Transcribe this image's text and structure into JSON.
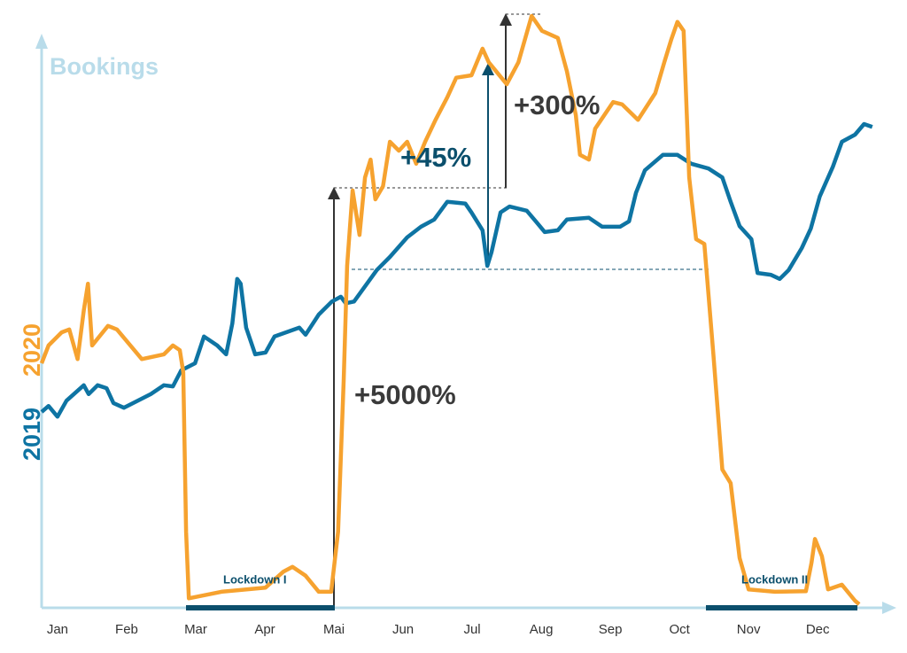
{
  "chart_data": {
    "type": "line",
    "ylabel": "Bookings",
    "categories": [
      "Jan",
      "Feb",
      "Mar",
      "Apr",
      "Mai",
      "Jun",
      "Jul",
      "Aug",
      "Sep",
      "Oct",
      "Nov",
      "Dec"
    ],
    "xlim": [
      -0.23,
      12.1
    ],
    "ylim": [
      0,
      100
    ],
    "series": [
      {
        "name": "2020",
        "color": "#f6a22f",
        "x": [
          -0.23,
          -0.13,
          0.06,
          0.17,
          0.29,
          0.38,
          0.44,
          0.5,
          0.73,
          0.86,
          1.22,
          1.54,
          1.67,
          1.77,
          1.82,
          1.86,
          1.9,
          2.37,
          3.01,
          3.27,
          3.4,
          3.59,
          3.78,
          3.96,
          4.06,
          4.14,
          4.19,
          4.27,
          4.37,
          4.45,
          4.53,
          4.6,
          4.71,
          4.81,
          4.94,
          5.06,
          5.19,
          5.32,
          5.47,
          5.64,
          5.77,
          5.99,
          6.15,
          6.24,
          6.5,
          6.67,
          6.86,
          7.01,
          7.24,
          7.37,
          7.5,
          7.56,
          7.69,
          7.78,
          8.04,
          8.17,
          8.4,
          8.65,
          8.78,
          8.88,
          8.97,
          9.06,
          9.14,
          9.24,
          9.36,
          9.49,
          9.62,
          9.74,
          9.87,
          10.0,
          10.38,
          10.83,
          10.91,
          10.96,
          11.06,
          11.15,
          11.35,
          11.54,
          11.6
        ],
        "values": [
          41.2,
          44.2,
          46.4,
          46.9,
          41.9,
          50.1,
          54.6,
          44.2,
          47.5,
          46.9,
          41.9,
          42.7,
          44.2,
          43.4,
          39.7,
          12.8,
          1.6,
          2.7,
          3.4,
          6.1,
          6.9,
          5.4,
          2.7,
          2.7,
          12.8,
          38.2,
          57.6,
          70.3,
          62.8,
          72.5,
          75.5,
          68.8,
          71.0,
          78.5,
          77.0,
          78.5,
          74.8,
          78.5,
          82.2,
          86.0,
          89.3,
          89.7,
          94.2,
          91.9,
          88.2,
          91.9,
          99.7,
          97.2,
          96.0,
          90.4,
          83.0,
          76.3,
          75.5,
          80.7,
          85.2,
          84.8,
          82.2,
          86.7,
          91.9,
          95.7,
          98.7,
          97.2,
          72.5,
          62.1,
          61.3,
          42.7,
          23.3,
          21.0,
          8.4,
          3.1,
          2.7,
          2.8,
          7.6,
          11.6,
          8.7,
          3.1,
          3.9,
          1.2,
          0.6
        ]
      },
      {
        "name": "2019",
        "color": "#0e74a3",
        "x": [
          -0.23,
          -0.13,
          0,
          0.13,
          0.38,
          0.45,
          0.58,
          0.71,
          0.81,
          0.96,
          1.35,
          1.54,
          1.67,
          1.79,
          1.99,
          2.12,
          2.31,
          2.44,
          2.53,
          2.6,
          2.65,
          2.73,
          2.86,
          3.01,
          3.14,
          3.5,
          3.59,
          3.78,
          3.97,
          4.1,
          4.17,
          4.29,
          4.62,
          4.81,
          5.06,
          5.26,
          5.45,
          5.64,
          5.9,
          5.99,
          6.15,
          6.22,
          6.28,
          6.41,
          6.54,
          6.79,
          6.92,
          7.05,
          7.24,
          7.37,
          7.69,
          7.88,
          8.14,
          8.27,
          8.37,
          8.5,
          8.76,
          8.97,
          9.17,
          9.42,
          9.62,
          9.74,
          9.87,
          10.04,
          10.13,
          10.32,
          10.45,
          10.58,
          10.77,
          10.9,
          11.03,
          11.22,
          11.35,
          11.54,
          11.67,
          11.79
        ],
        "values": [
          33.0,
          34.0,
          32.2,
          34.9,
          37.5,
          36.0,
          37.5,
          37.0,
          34.5,
          33.7,
          36.0,
          37.5,
          37.3,
          40.0,
          41.2,
          45.7,
          44.2,
          42.7,
          47.9,
          55.4,
          54.6,
          47.2,
          42.7,
          43.0,
          45.7,
          47.2,
          46.0,
          49.4,
          51.6,
          52.4,
          51.3,
          51.6,
          56.9,
          59.1,
          62.4,
          64.2,
          65.4,
          68.4,
          68.1,
          66.6,
          63.6,
          57.6,
          59.9,
          66.6,
          67.6,
          66.9,
          65.1,
          63.3,
          63.6,
          65.4,
          65.7,
          64.2,
          64.2,
          65.1,
          69.9,
          73.7,
          76.3,
          76.3,
          74.8,
          74.0,
          72.5,
          68.4,
          64.3,
          62.1,
          56.4,
          56.1,
          55.4,
          56.9,
          60.6,
          63.9,
          69.3,
          74.3,
          78.5,
          79.7,
          81.5,
          81.0
        ]
      }
    ],
    "annotations": [
      "+5000%",
      "+45%",
      "+300%"
    ],
    "periods": [
      "Lockdown I",
      "Lockdown II"
    ]
  }
}
